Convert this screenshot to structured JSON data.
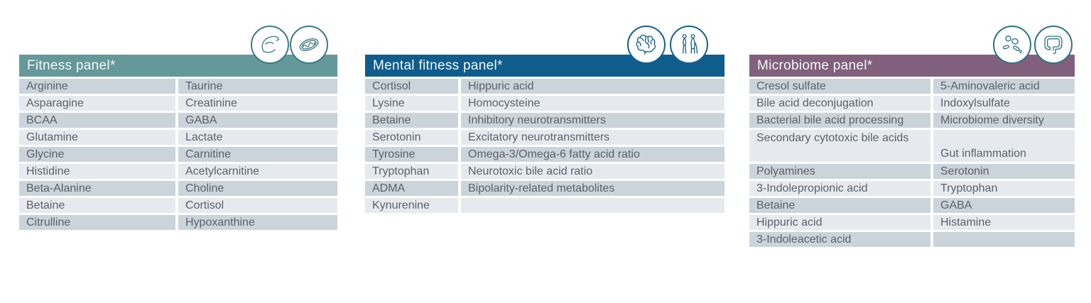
{
  "colors": {
    "background": "#ffffff",
    "row_dark": "#cbd3db",
    "row_light": "#e6eaee",
    "cell_text": "#5b6269",
    "header_text": "#f4f7f7",
    "fitness_header": "#659899",
    "mental_header": "#0e5d8d",
    "microbiome_header": "#80607c",
    "fitness_icon_stroke": "#3c7b88",
    "mental_icon_stroke": "#16608f",
    "microbiome_icon_stroke": "#2f7486"
  },
  "panels": [
    {
      "title": "Fitness panel*",
      "header_color": "#659899",
      "icons": [
        "flexed-arm-icon",
        "mitochondrion-icon"
      ],
      "rows": [
        {
          "left": "Arginine",
          "right": "Taurine"
        },
        {
          "left": "Asparagine",
          "right": "Creatinine"
        },
        {
          "left": "BCAA",
          "right": "GABA"
        },
        {
          "left": "Glutamine",
          "right": "Lactate"
        },
        {
          "left": "Glycine",
          "right": "Carnitine"
        },
        {
          "left": "Histidine",
          "right": "Acetylcarnitine"
        },
        {
          "left": "Beta-Alanine",
          "right": "Choline"
        },
        {
          "left": "Betaine",
          "right": "Cortisol"
        },
        {
          "left": "Citrulline",
          "right": "Hypoxanthine"
        }
      ]
    },
    {
      "title": "Mental fitness panel*",
      "header_color": "#0e5d8d",
      "icons": [
        "brain-icon",
        "two-people-icon"
      ],
      "rows": [
        {
          "left": "Cortisol",
          "right": "Hippuric acid"
        },
        {
          "left": "Lysine",
          "right": "Homocysteine"
        },
        {
          "left": "Betaine",
          "right": "Inhibitory neurotransmitters"
        },
        {
          "left": "Serotonin",
          "right": "Excitatory neurotransmitters"
        },
        {
          "left": "Tyrosine",
          "right": "Omega-3/Omega-6 fatty acid ratio"
        },
        {
          "left": "Tryptophan",
          "right": "Neurotoxic bile acid ratio"
        },
        {
          "left": "ADMA",
          "right": "Bipolarity-related metabolites"
        },
        {
          "left": "Kynurenine",
          "right": ""
        }
      ]
    },
    {
      "title": "Microbiome panel*",
      "header_color": "#80607c",
      "icons": [
        "bacteria-icon",
        "intestine-icon"
      ],
      "rows": [
        {
          "left": "Cresol sulfate",
          "right": "5-Aminovaleric acid"
        },
        {
          "left": "Bile acid deconjugation",
          "right": "Indoxylsulfate"
        },
        {
          "left": "Bacterial bile acid processing",
          "right": "Microbiome diversity"
        },
        {
          "left": "Secondary cytotoxic bile acids",
          "right": "Gut inflammation",
          "tall": true
        },
        {
          "left": "Polyamines",
          "right": "Serotonin"
        },
        {
          "left": "3-Indolepropionic acid",
          "right": "Tryptophan"
        },
        {
          "left": "Betaine",
          "right": "GABA"
        },
        {
          "left": "Hippuric acid",
          "right": "Histamine"
        },
        {
          "left": "3-Indoleacetic acid",
          "right": ""
        }
      ]
    }
  ]
}
